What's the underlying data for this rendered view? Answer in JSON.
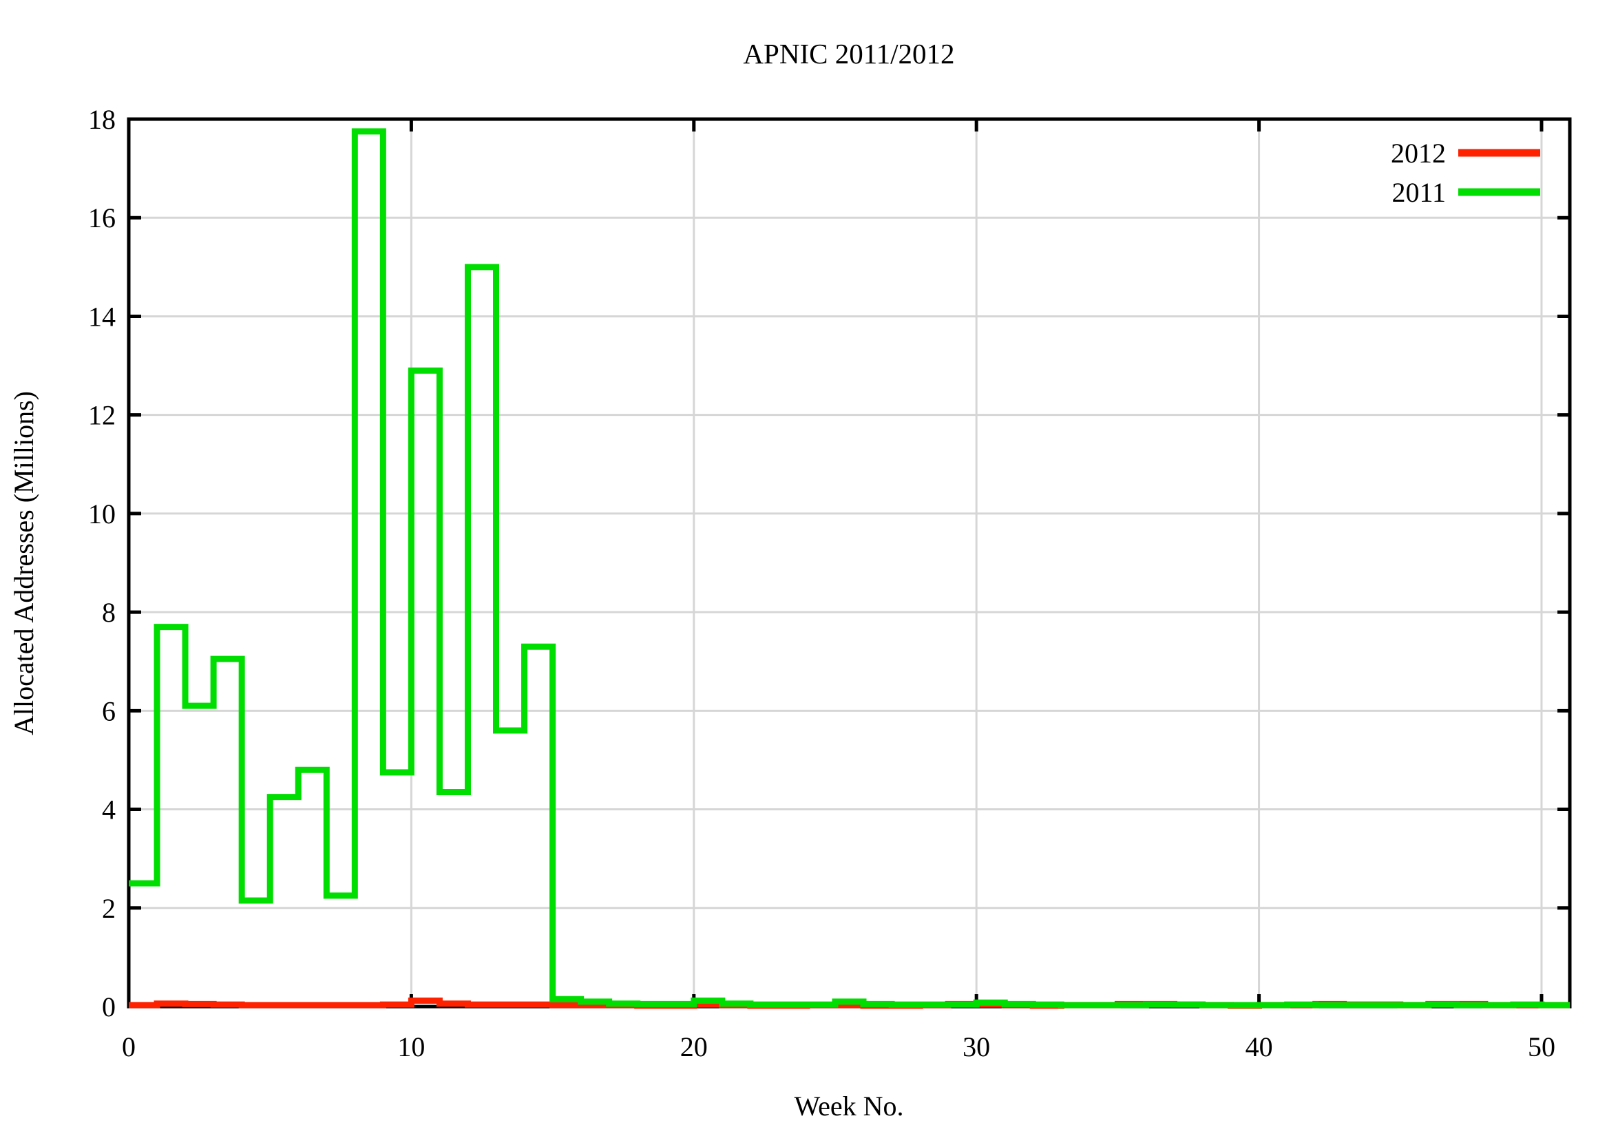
{
  "chart_data": {
    "type": "line",
    "step": true,
    "title": "APNIC 2011/2012",
    "xlabel": "Week No.",
    "ylabel": "Allocated Addresses (Millions)",
    "xlim": [
      0,
      51
    ],
    "ylim": [
      0,
      18
    ],
    "xticks": [
      0,
      10,
      20,
      30,
      40,
      50
    ],
    "yticks": [
      0,
      2,
      4,
      6,
      8,
      10,
      12,
      14,
      16,
      18
    ],
    "grid": true,
    "legend_position": "top-right-inside",
    "x_unit": "week index, each value spans one week",
    "series": [
      {
        "name": "2012",
        "color": "#ff2200",
        "values": [
          0.03,
          0.06,
          0.05,
          0.04,
          0.03,
          0.03,
          0.03,
          0.03,
          0.03,
          0.04,
          0.12,
          0.06,
          0.04,
          0.04,
          0.04,
          0.03,
          0.03,
          0.03,
          0.02,
          0.02,
          0.04,
          0.03,
          0.02,
          0.02,
          0.03,
          0.03,
          0.02,
          0.02,
          0.03,
          0.05,
          0.04,
          0.03,
          0.02,
          0.03,
          0.03,
          0.05,
          0.05,
          0.04,
          0.03,
          0.02,
          0.03,
          0.03,
          0.05,
          0.04,
          0.04,
          0.03,
          0.05,
          0.05,
          0.03,
          0.03,
          0.03
        ]
      },
      {
        "name": "2011",
        "color": "#00dd00",
        "values": [
          2.5,
          7.7,
          6.1,
          7.05,
          2.15,
          4.25,
          4.8,
          2.25,
          17.75,
          4.75,
          12.9,
          4.35,
          15.0,
          5.6,
          7.3,
          0.15,
          0.1,
          0.06,
          0.05,
          0.05,
          0.12,
          0.06,
          0.04,
          0.04,
          0.04,
          0.1,
          0.05,
          0.04,
          0.04,
          0.04,
          0.08,
          0.05,
          0.04,
          0.03,
          0.03,
          0.03,
          0.04,
          0.04,
          0.03,
          0.03,
          0.03,
          0.04,
          0.03,
          0.03,
          0.03,
          0.03,
          0.04,
          0.03,
          0.03,
          0.04,
          0.03
        ]
      }
    ],
    "legend_order": [
      "2012",
      "2011"
    ]
  }
}
